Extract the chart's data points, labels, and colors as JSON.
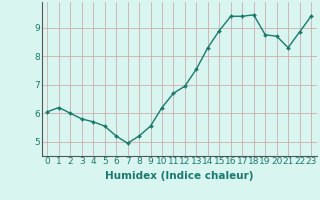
{
  "x": [
    0,
    1,
    2,
    3,
    4,
    5,
    6,
    7,
    8,
    9,
    10,
    11,
    12,
    13,
    14,
    15,
    16,
    17,
    18,
    19,
    20,
    21,
    22,
    23
  ],
  "y": [
    6.05,
    6.2,
    6.0,
    5.8,
    5.7,
    5.55,
    5.2,
    4.95,
    5.2,
    5.55,
    6.2,
    6.7,
    6.95,
    7.55,
    8.3,
    8.9,
    9.4,
    9.4,
    9.45,
    8.75,
    8.7,
    8.3,
    8.85,
    9.4
  ],
  "line_color": "#1a7a6e",
  "marker": "D",
  "marker_size": 2.0,
  "line_width": 1.0,
  "xlabel": "Humidex (Indice chaleur)",
  "xlabel_fontsize": 7.5,
  "ylim": [
    4.5,
    9.9
  ],
  "xlim": [
    -0.5,
    23.5
  ],
  "yticks": [
    5,
    6,
    7,
    8,
    9
  ],
  "xticks": [
    0,
    1,
    2,
    3,
    4,
    5,
    6,
    7,
    8,
    9,
    10,
    11,
    12,
    13,
    14,
    15,
    16,
    17,
    18,
    19,
    20,
    21,
    22,
    23
  ],
  "grid_color": "#c8a0a0",
  "bg_color": "#d8f5f0",
  "tick_label_fontsize": 6.5,
  "tick_color": "#1a7a6e",
  "spine_color": "#555555"
}
